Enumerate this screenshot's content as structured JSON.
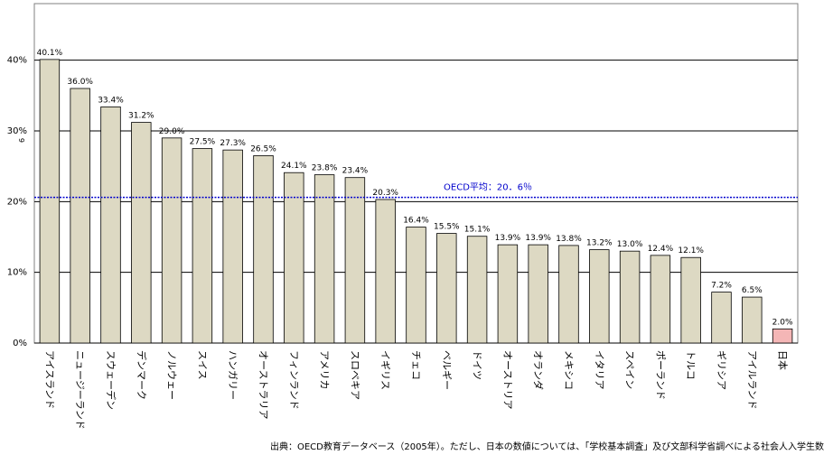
{
  "chart_data": {
    "type": "bar",
    "title": "",
    "xlabel": "",
    "ylabel": "",
    "stray_label": "6",
    "ylim": [
      0,
      48
    ],
    "yticks": [
      "0%",
      "10%",
      "20%",
      "30%",
      "40%"
    ],
    "grid": true,
    "categories": [
      "アイスランド",
      "ニュージーランド",
      "スウェーデン",
      "デンマーク",
      "ノルウェー",
      "スイス",
      "ハンガリー",
      "オーストラリア",
      "フィンランド",
      "アメリカ",
      "スロベキア",
      "イギリス",
      "チェコ",
      "ベルギー",
      "ドイツ",
      "オーストリア",
      "オランダ",
      "メキシコ",
      "イタリア",
      "スペイン",
      "ポーランド",
      "トルコ",
      "ギリシア",
      "アイルランド",
      "日本"
    ],
    "values": [
      40.1,
      36.0,
      33.4,
      31.2,
      29.0,
      27.5,
      27.3,
      26.5,
      24.1,
      23.8,
      23.4,
      20.3,
      16.4,
      15.5,
      15.1,
      13.9,
      13.9,
      13.8,
      13.2,
      13.0,
      12.4,
      12.1,
      7.2,
      6.5,
      2.0
    ],
    "data_labels": [
      "40.1%",
      "36.0%",
      "33.4%",
      "31.2%",
      "29.0%",
      "27.5%",
      "27.3%",
      "26.5%",
      "24.1%",
      "23.8%",
      "23.4%",
      "20.3%",
      "16.4%",
      "15.5%",
      "15.1%",
      "13.9%",
      "13.9%",
      "13.8%",
      "13.2%",
      "13.0%",
      "12.4%",
      "12.1%",
      "7.2%",
      "6.5%",
      "2.0%"
    ],
    "highlight_index": 24,
    "reference_line": {
      "value": 20.6,
      "label": "OECD平均：20．6％"
    },
    "colors": {
      "bar": "#ddd9c3",
      "highlight": "#f4b6b6",
      "edge": "#000000",
      "reference": "#0000cc"
    }
  },
  "source_note": "出典：OECD教育データベース（2005年）。ただし、日本の数値については、「学校基本調査」及び文部科学省調べによる社会人入学生数"
}
